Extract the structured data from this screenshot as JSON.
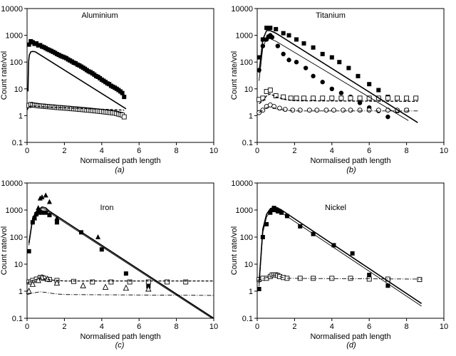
{
  "figure": {
    "panels": [
      {
        "id": "a",
        "caption": "(a)",
        "title": "Aluminium",
        "xlabel": "Normalised path length",
        "ylabel": "Count rate/vol",
        "xticks": [
          "0",
          "2",
          "4",
          "6",
          "8",
          "10"
        ],
        "yticks": [
          "0.1",
          "1",
          "10",
          "100",
          "1000",
          "10000"
        ]
      },
      {
        "id": "b",
        "caption": "(b)",
        "title": "Titanium",
        "xlabel": "Normalised path length",
        "ylabel": "Count rate/vol",
        "xticks": [
          "0",
          "2",
          "4",
          "6",
          "8",
          "10"
        ],
        "yticks": [
          "0.1",
          "1",
          "10",
          "100",
          "1000",
          "10000"
        ]
      },
      {
        "id": "c",
        "caption": "(c)",
        "title": "Iron",
        "xlabel": "Normalised path length",
        "ylabel": "Count rate/vol",
        "xticks": [
          "0",
          "2",
          "4",
          "6",
          "8",
          "10"
        ],
        "yticks": [
          "0.1",
          "1",
          "10",
          "100",
          "1000",
          "10000"
        ]
      },
      {
        "id": "d",
        "caption": "(d)",
        "title": "Nickel",
        "xlabel": "Normalised path length",
        "ylabel": "Count rate/vol",
        "xticks": [
          "0",
          "2",
          "4",
          "6",
          "8",
          "10"
        ],
        "yticks": [
          "0.1",
          "1",
          "10",
          "100",
          "1000",
          "10000"
        ]
      }
    ]
  },
  "chart_data": [
    {
      "type": "scatter",
      "title": "Aluminium",
      "xlabel": "Normalised path length",
      "ylabel": "Count rate/vol",
      "xlim": [
        0,
        10
      ],
      "ylim": [
        0.1,
        10000
      ],
      "yscale": "log",
      "grid": false,
      "series": [
        {
          "marker": "filled-square",
          "x": [
            0.1,
            0.2,
            0.3,
            0.4,
            0.5,
            0.6,
            0.7,
            0.8,
            0.9,
            1.0,
            1.1,
            1.2,
            1.3,
            1.4,
            1.5,
            1.6,
            1.7,
            1.8,
            1.9,
            2.0,
            2.1,
            2.2,
            2.3,
            2.4,
            2.5,
            2.6,
            2.7,
            2.8,
            2.9,
            3.0,
            3.1,
            3.2,
            3.3,
            3.4,
            3.5,
            3.6,
            3.7,
            3.8,
            3.9,
            4.0,
            4.1,
            4.2,
            4.3,
            4.4,
            4.5,
            4.6,
            4.7,
            4.8,
            4.9,
            5.0,
            5.1,
            5.2
          ],
          "y": [
            450,
            600,
            550,
            480,
            500,
            420,
            430,
            380,
            360,
            330,
            300,
            280,
            260,
            240,
            220,
            200,
            185,
            170,
            160,
            150,
            140,
            125,
            115,
            105,
            95,
            90,
            80,
            75,
            68,
            62,
            56,
            50,
            45,
            42,
            38,
            34,
            30,
            28,
            25,
            22,
            20,
            18,
            16,
            15,
            13,
            12,
            11,
            10,
            9,
            8,
            7,
            5
          ]
        },
        {
          "marker": "open-square",
          "x": [
            0.1,
            0.2,
            0.3,
            0.4,
            0.5,
            0.6,
            0.7,
            0.8,
            0.9,
            1.0,
            1.1,
            1.2,
            1.3,
            1.4,
            1.5,
            1.6,
            1.7,
            1.8,
            1.9,
            2.0,
            2.1,
            2.2,
            2.3,
            2.4,
            2.5,
            2.6,
            2.7,
            2.8,
            2.9,
            3.0,
            3.1,
            3.2,
            3.3,
            3.4,
            3.5,
            3.6,
            3.7,
            3.8,
            3.9,
            4.0,
            4.1,
            4.2,
            4.3,
            4.4,
            4.5,
            4.6,
            4.7,
            4.8,
            4.9,
            5.0,
            5.1,
            5.2
          ],
          "y": [
            2.4,
            2.6,
            2.5,
            2.45,
            2.4,
            2.35,
            2.3,
            2.28,
            2.25,
            2.2,
            2.18,
            2.15,
            2.12,
            2.1,
            2.05,
            2.02,
            2.0,
            1.98,
            1.95,
            1.92,
            1.9,
            1.88,
            1.85,
            1.82,
            1.8,
            1.78,
            1.75,
            1.72,
            1.7,
            1.68,
            1.65,
            1.62,
            1.6,
            1.58,
            1.55,
            1.52,
            1.5,
            1.47,
            1.45,
            1.42,
            1.4,
            1.37,
            1.35,
            1.32,
            1.3,
            1.27,
            1.25,
            1.2,
            1.15,
            1.1,
            1.05,
            0.9
          ]
        },
        {
          "line": "solid",
          "x": [
            0.05,
            0.08,
            0.12,
            0.2,
            0.3,
            0.45,
            5.3
          ],
          "y": [
            8,
            100,
            180,
            240,
            250,
            240,
            1.8
          ]
        },
        {
          "line": "dashed",
          "x": [
            0.0,
            0.1,
            0.3,
            1.0,
            5.2
          ],
          "y": [
            1.6,
            2.2,
            2.3,
            2.1,
            1.6
          ]
        }
      ]
    },
    {
      "type": "scatter",
      "title": "Titanium",
      "xlabel": "Normalised path length",
      "ylabel": "Count rate/vol",
      "xlim": [
        0,
        10
      ],
      "ylim": [
        0.1,
        10000
      ],
      "yscale": "log",
      "grid": false,
      "series": [
        {
          "marker": "filled-square",
          "x": [
            0.1,
            0.3,
            0.5,
            0.7,
            1.0,
            1.4,
            1.7,
            2.1,
            2.5,
            3.0,
            3.5,
            4.0,
            4.4,
            4.9,
            5.4,
            6.0,
            6.5,
            7.0,
            7.5,
            8.0
          ],
          "y": [
            150,
            700,
            1900,
            1900,
            1700,
            1200,
            1000,
            700,
            500,
            350,
            200,
            150,
            100,
            60,
            30,
            15,
            9,
            5,
            1.5,
            1.6
          ]
        },
        {
          "marker": "filled-circle",
          "x": [
            0.1,
            0.3,
            0.5,
            0.6,
            0.7,
            0.8,
            1.1,
            1.4,
            1.7,
            2.1,
            2.6,
            3.0,
            3.5,
            4.0,
            4.5,
            5.0,
            5.5,
            6.0,
            6.5,
            7.0
          ],
          "y": [
            50,
            400,
            700,
            900,
            1000,
            850,
            400,
            200,
            120,
            100,
            60,
            30,
            18,
            10,
            7,
            5,
            3,
            2,
            1.5,
            0.9
          ]
        },
        {
          "marker": "open-square",
          "x": [
            0.1,
            0.3,
            0.5,
            0.7,
            1.0,
            1.4,
            1.8,
            2.1,
            2.5,
            3.0,
            3.5,
            4.0,
            4.5,
            5.0,
            5.5,
            6.0,
            6.5,
            7.0,
            7.5,
            8.0,
            8.5
          ],
          "y": [
            4,
            4.5,
            8,
            9,
            5.5,
            5,
            4.5,
            4.5,
            4.5,
            4.5,
            4.5,
            4.5,
            4.5,
            4.5,
            4.5,
            4.5,
            4.5,
            4.5,
            4.5,
            4.5,
            4.5
          ]
        },
        {
          "marker": "open-circle",
          "x": [
            0.1,
            0.3,
            0.5,
            0.7,
            0.9,
            1.2,
            1.5,
            1.9,
            2.3,
            2.8,
            3.2,
            3.7,
            4.1,
            4.6,
            5.0,
            5.5,
            6.0,
            6.5,
            7.0,
            7.5,
            8.0
          ],
          "y": [
            1.3,
            1.6,
            2.2,
            2.5,
            2.2,
            1.9,
            1.7,
            1.6,
            1.6,
            1.6,
            1.6,
            1.6,
            1.6,
            1.6,
            1.6,
            1.6,
            1.6,
            1.6,
            1.6,
            1.6,
            1.6
          ]
        },
        {
          "line": "solid",
          "x": [
            0.1,
            0.3,
            0.5,
            0.7,
            1.0,
            8.6
          ],
          "y": [
            40,
            700,
            1500,
            1500,
            1200,
            0.55
          ]
        },
        {
          "line": "thin-solid",
          "x": [
            0.1,
            0.3,
            0.5,
            0.7,
            1.0,
            8.1
          ],
          "y": [
            20,
            350,
            750,
            750,
            600,
            0.65
          ]
        },
        {
          "line": "dashed",
          "x": [
            0.1,
            0.3,
            0.5,
            0.7,
            1.0,
            1.5,
            2.0,
            8.6
          ],
          "y": [
            2.8,
            3.5,
            5.5,
            6.5,
            5.0,
            4.0,
            3.6,
            3.4
          ]
        },
        {
          "line": "dash-dot",
          "x": [
            0.1,
            0.3,
            0.5,
            0.7,
            1.0,
            1.5,
            2.0,
            8.6
          ],
          "y": [
            1.3,
            1.6,
            2.0,
            2.2,
            1.8,
            1.6,
            1.5,
            1.5
          ]
        }
      ]
    },
    {
      "type": "scatter",
      "title": "Iron",
      "xlabel": "Normalised path length",
      "ylabel": "Count rate/vol",
      "xlim": [
        0,
        10
      ],
      "ylim": [
        0.1,
        10000
      ],
      "yscale": "log",
      "grid": false,
      "series": [
        {
          "marker": "filled-square",
          "x": [
            0.1,
            0.3,
            0.4,
            0.5,
            0.6,
            0.7,
            0.8,
            1.0,
            1.2,
            1.6,
            2.9,
            4.0,
            5.3,
            6.5
          ],
          "y": [
            30,
            350,
            500,
            700,
            800,
            850,
            800,
            800,
            650,
            350,
            150,
            35,
            4.5,
            1.5
          ]
        },
        {
          "marker": "filled-triangle",
          "x": [
            0.4,
            0.6,
            0.7,
            0.8,
            1.0,
            1.2,
            1.6,
            3.8
          ],
          "y": [
            500,
            1200,
            2700,
            3000,
            3500,
            2000,
            500,
            100
          ]
        },
        {
          "marker": "open-square",
          "x": [
            0.1,
            0.2,
            0.3,
            0.5,
            0.7,
            0.8,
            0.9,
            1.2,
            1.6,
            2.5,
            3.5,
            4.5,
            5.5,
            6.5,
            7.5,
            8.5
          ],
          "y": [
            2.2,
            2.2,
            2.5,
            2.8,
            3.2,
            3.2,
            3.0,
            2.7,
            2.5,
            2.3,
            2.2,
            2.2,
            2.2,
            2.2,
            2.2,
            2.2
          ]
        },
        {
          "marker": "open-triangle",
          "x": [
            0.1,
            0.3,
            0.6,
            0.8,
            1.1,
            1.6,
            3.0,
            4.2,
            5.3,
            6.5
          ],
          "y": [
            1.0,
            1.8,
            2.5,
            3.2,
            2.8,
            2.0,
            1.6,
            1.4,
            1.3,
            1.2
          ]
        },
        {
          "line": "solid",
          "x": [
            0.1,
            0.3,
            0.5,
            0.8,
            1.0,
            1.2,
            10
          ],
          "y": [
            60,
            500,
            900,
            1300,
            1200,
            900,
            0.1
          ]
        },
        {
          "line": "thin-solid",
          "x": [
            0.1,
            0.3,
            0.5,
            0.8,
            1.0,
            1.2,
            10
          ],
          "y": [
            50,
            450,
            800,
            1150,
            1050,
            800,
            0.09
          ]
        },
        {
          "line": "dashed",
          "x": [
            0.0,
            0.3,
            0.7,
            1.0,
            1.5,
            2.0,
            10
          ],
          "y": [
            2.0,
            2.5,
            3.0,
            2.8,
            2.5,
            2.4,
            2.4
          ]
        },
        {
          "line": "dash-dot",
          "x": [
            0.0,
            0.3,
            0.7,
            1.0,
            1.5,
            2.0,
            10
          ],
          "y": [
            0.75,
            0.85,
            0.95,
            0.9,
            0.8,
            0.75,
            0.7
          ]
        }
      ]
    },
    {
      "type": "scatter",
      "title": "Nickel",
      "xlabel": "Normalised path length",
      "ylabel": "Count rate/vol",
      "xlim": [
        0,
        10
      ],
      "ylim": [
        0.1,
        10000
      ],
      "yscale": "log",
      "grid": false,
      "series": [
        {
          "marker": "filled-square",
          "x": [
            0.1,
            0.3,
            0.5,
            0.7,
            0.8,
            0.9,
            1.0,
            1.1,
            1.2,
            1.3,
            1.6,
            2.3,
            3.0,
            4.1,
            5.1,
            6.0,
            7.0
          ],
          "y": [
            1.2,
            100,
            300,
            800,
            1000,
            1200,
            1000,
            900,
            900,
            800,
            600,
            250,
            130,
            50,
            25,
            4,
            1.6
          ]
        },
        {
          "marker": "open-square",
          "x": [
            0.1,
            0.3,
            0.5,
            0.7,
            0.8,
            0.9,
            1.0,
            1.1,
            1.2,
            1.4,
            1.6,
            2.3,
            3.0,
            4.0,
            5.0,
            6.0,
            7.0,
            8.7
          ],
          "y": [
            2.7,
            3.0,
            3.0,
            3.5,
            4.0,
            4.0,
            4.0,
            3.8,
            3.5,
            3.2,
            3.0,
            3.0,
            3.0,
            3.0,
            3.0,
            2.8,
            2.8,
            2.7
          ]
        },
        {
          "line": "solid",
          "x": [
            0.1,
            0.3,
            0.5,
            0.7,
            0.9,
            1.1,
            1.3,
            8.8
          ],
          "y": [
            2,
            200,
            700,
            1100,
            1300,
            1200,
            1000,
            0.35
          ]
        },
        {
          "line": "thin-solid",
          "x": [
            0.1,
            0.3,
            0.5,
            0.7,
            0.9,
            1.1,
            1.3,
            8.8
          ],
          "y": [
            1.5,
            150,
            550,
            900,
            1050,
            950,
            800,
            0.28
          ]
        },
        {
          "line": "dash-dot",
          "x": [
            0.0,
            0.5,
            0.9,
            1.5,
            8.8
          ],
          "y": [
            2.5,
            3.2,
            4.0,
            3.0,
            2.8
          ]
        }
      ]
    }
  ]
}
